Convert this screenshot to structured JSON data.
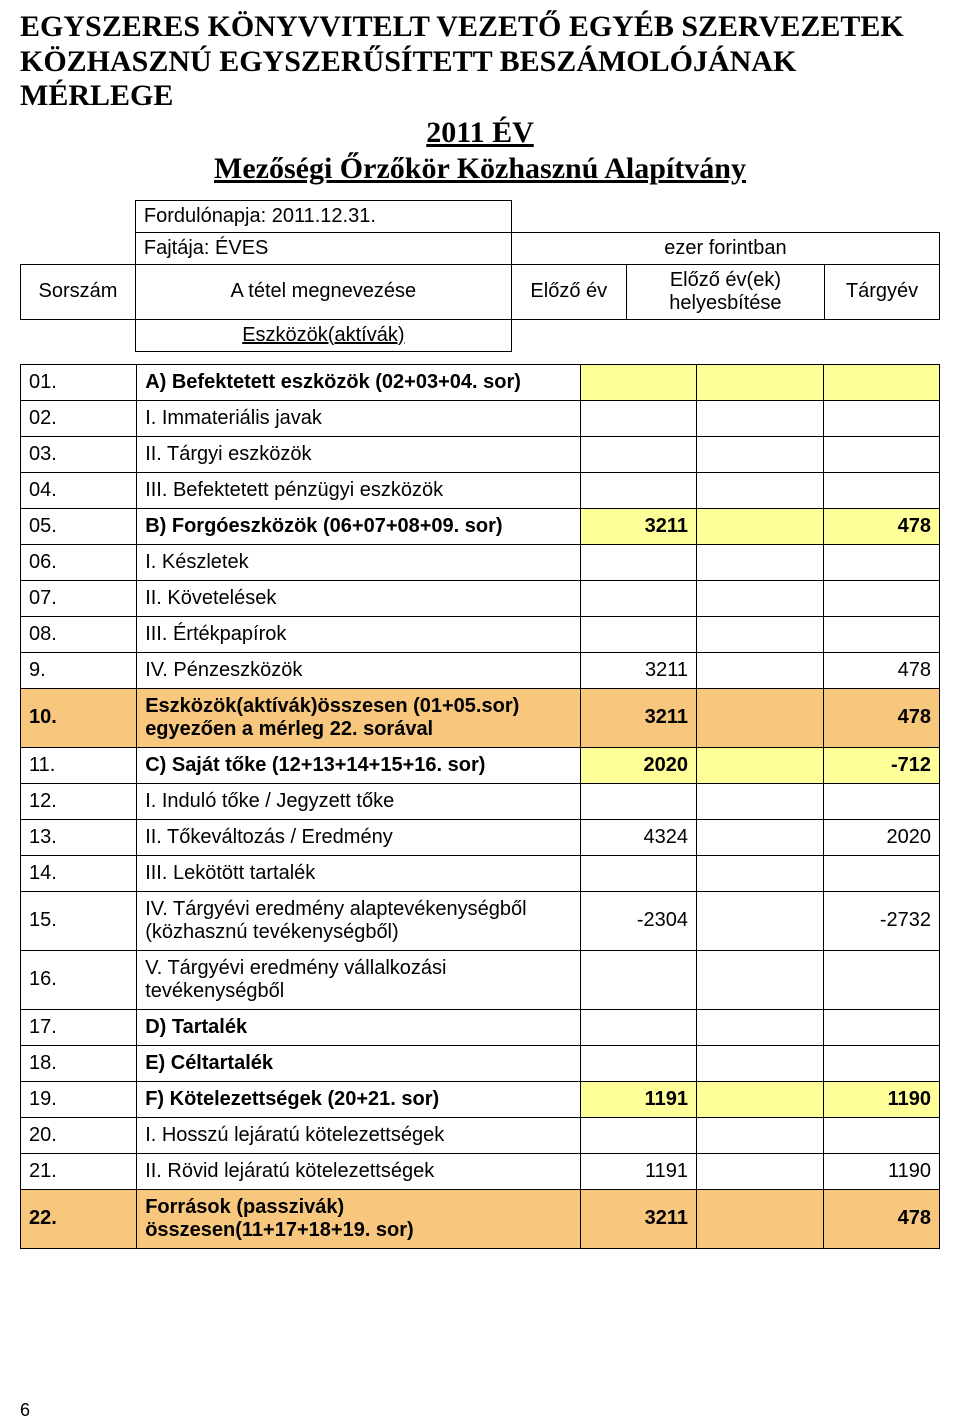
{
  "title": {
    "line1": "EGYSZERES KÖNYVVITELT VEZETŐ EGYÉB SZERVEZETEK",
    "line2": "KÖZHASZNÚ EGYSZERŰSÍTETT BESZÁMOLÓJÁNAK MÉRLEGE",
    "year": "2011 ÉV",
    "org": "Mezőségi Őrzőkör Közhasznú Alapítvány"
  },
  "meta": {
    "date_label": "Fordulónapja: 2011.12.31.",
    "type_label": "Fajtája: ÉVES",
    "unit": "ezer forintban",
    "col_sor": "Sorszám",
    "col_megnev": "A tétel megnevezése",
    "col_elozo": "Előző év",
    "col_helyesb": "Előző év(ek) helyesbítése",
    "col_targy": "Tárgyév",
    "assets_header": "Eszközök(aktívák)"
  },
  "rows": [
    {
      "n": "01.",
      "label": "A)  Befektetett eszközök (02+03+04. sor)",
      "hl": true,
      "bold": true
    },
    {
      "n": "02.",
      "label": "I.      Immateriális javak",
      "indent": true
    },
    {
      "n": "03.",
      "label": "II.     Tárgyi eszközök",
      "indent": true
    },
    {
      "n": "04.",
      "label": "III.    Befektetett pénzügyi eszközök",
      "indent": true
    },
    {
      "n": "05.",
      "label": "B)  Forgóeszközök (06+07+08+09. sor)",
      "hl": true,
      "bold": true,
      "v2": "3211",
      "v4": "478"
    },
    {
      "n": "06.",
      "label": "I.      Készletek",
      "indent": true
    },
    {
      "n": "07.",
      "label": "II.     Követelések",
      "indent": true
    },
    {
      "n": "08.",
      "label": "III.    Értékpapírok",
      "indent": true
    },
    {
      "n": "9.",
      "label": "IV.     Pénzeszközök",
      "indent": true,
      "v2": "3211",
      "v4": "478"
    },
    {
      "n": "10.",
      "label": "Eszközök(aktívák)összesen (01+05.sor) egyezően a mérleg 22. sorával",
      "orange": true,
      "v2": "3211",
      "v4": "478"
    },
    {
      "n": "11.",
      "label": "C)  Saját tőke (12+13+14+15+16. sor)",
      "hl": true,
      "bold": true,
      "v2": "2020",
      "v4": "-712"
    },
    {
      "n": "12.",
      "label": "I.      Induló tőke / Jegyzett tőke",
      "indent": true
    },
    {
      "n": "13.",
      "label": "II.     Tőkeváltozás / Eredmény",
      "indent": true,
      "v2": "4324",
      "v4": "2020"
    },
    {
      "n": "14.",
      "label": "III.    Lekötött tartalék",
      "indent": true
    },
    {
      "n": "15.",
      "label": "IV. Tárgyévi eredmény alaptevékenységből (közhasznú tevékenységből)",
      "indent": true,
      "v2": "-2304",
      "v4": "-2732"
    },
    {
      "n": "16.",
      "label": "V.      Tárgyévi eredmény vállalkozási tevékenységből",
      "indent": true
    },
    {
      "n": "17.",
      "label": "D)  Tartalék",
      "bold": true
    },
    {
      "n": "18.",
      "label": "E)  Céltartalék",
      "bold": true
    },
    {
      "n": "19.",
      "label": "F)  Kötelezettségek (20+21. sor)",
      "hl": true,
      "bold": true,
      "v2": "1191",
      "v4": "1190"
    },
    {
      "n": "20.",
      "label": "I.      Hosszú lejáratú kötelezettségek",
      "indent": true
    },
    {
      "n": "21.",
      "label": "II.     Rövid lejáratú kötelezettségek",
      "indent": true,
      "v2": "1191",
      "v4": "1190"
    },
    {
      "n": "22.",
      "label": "Források (passzivák) összesen(11+17+18+19. sor)",
      "orange": true,
      "v2": "3211",
      "v4": "478"
    }
  ],
  "colors": {
    "highlight": "#ffff99",
    "orange": "#f7c77d",
    "border": "#000000",
    "bg": "#ffffff",
    "text": "#000000"
  },
  "page_number": "6"
}
